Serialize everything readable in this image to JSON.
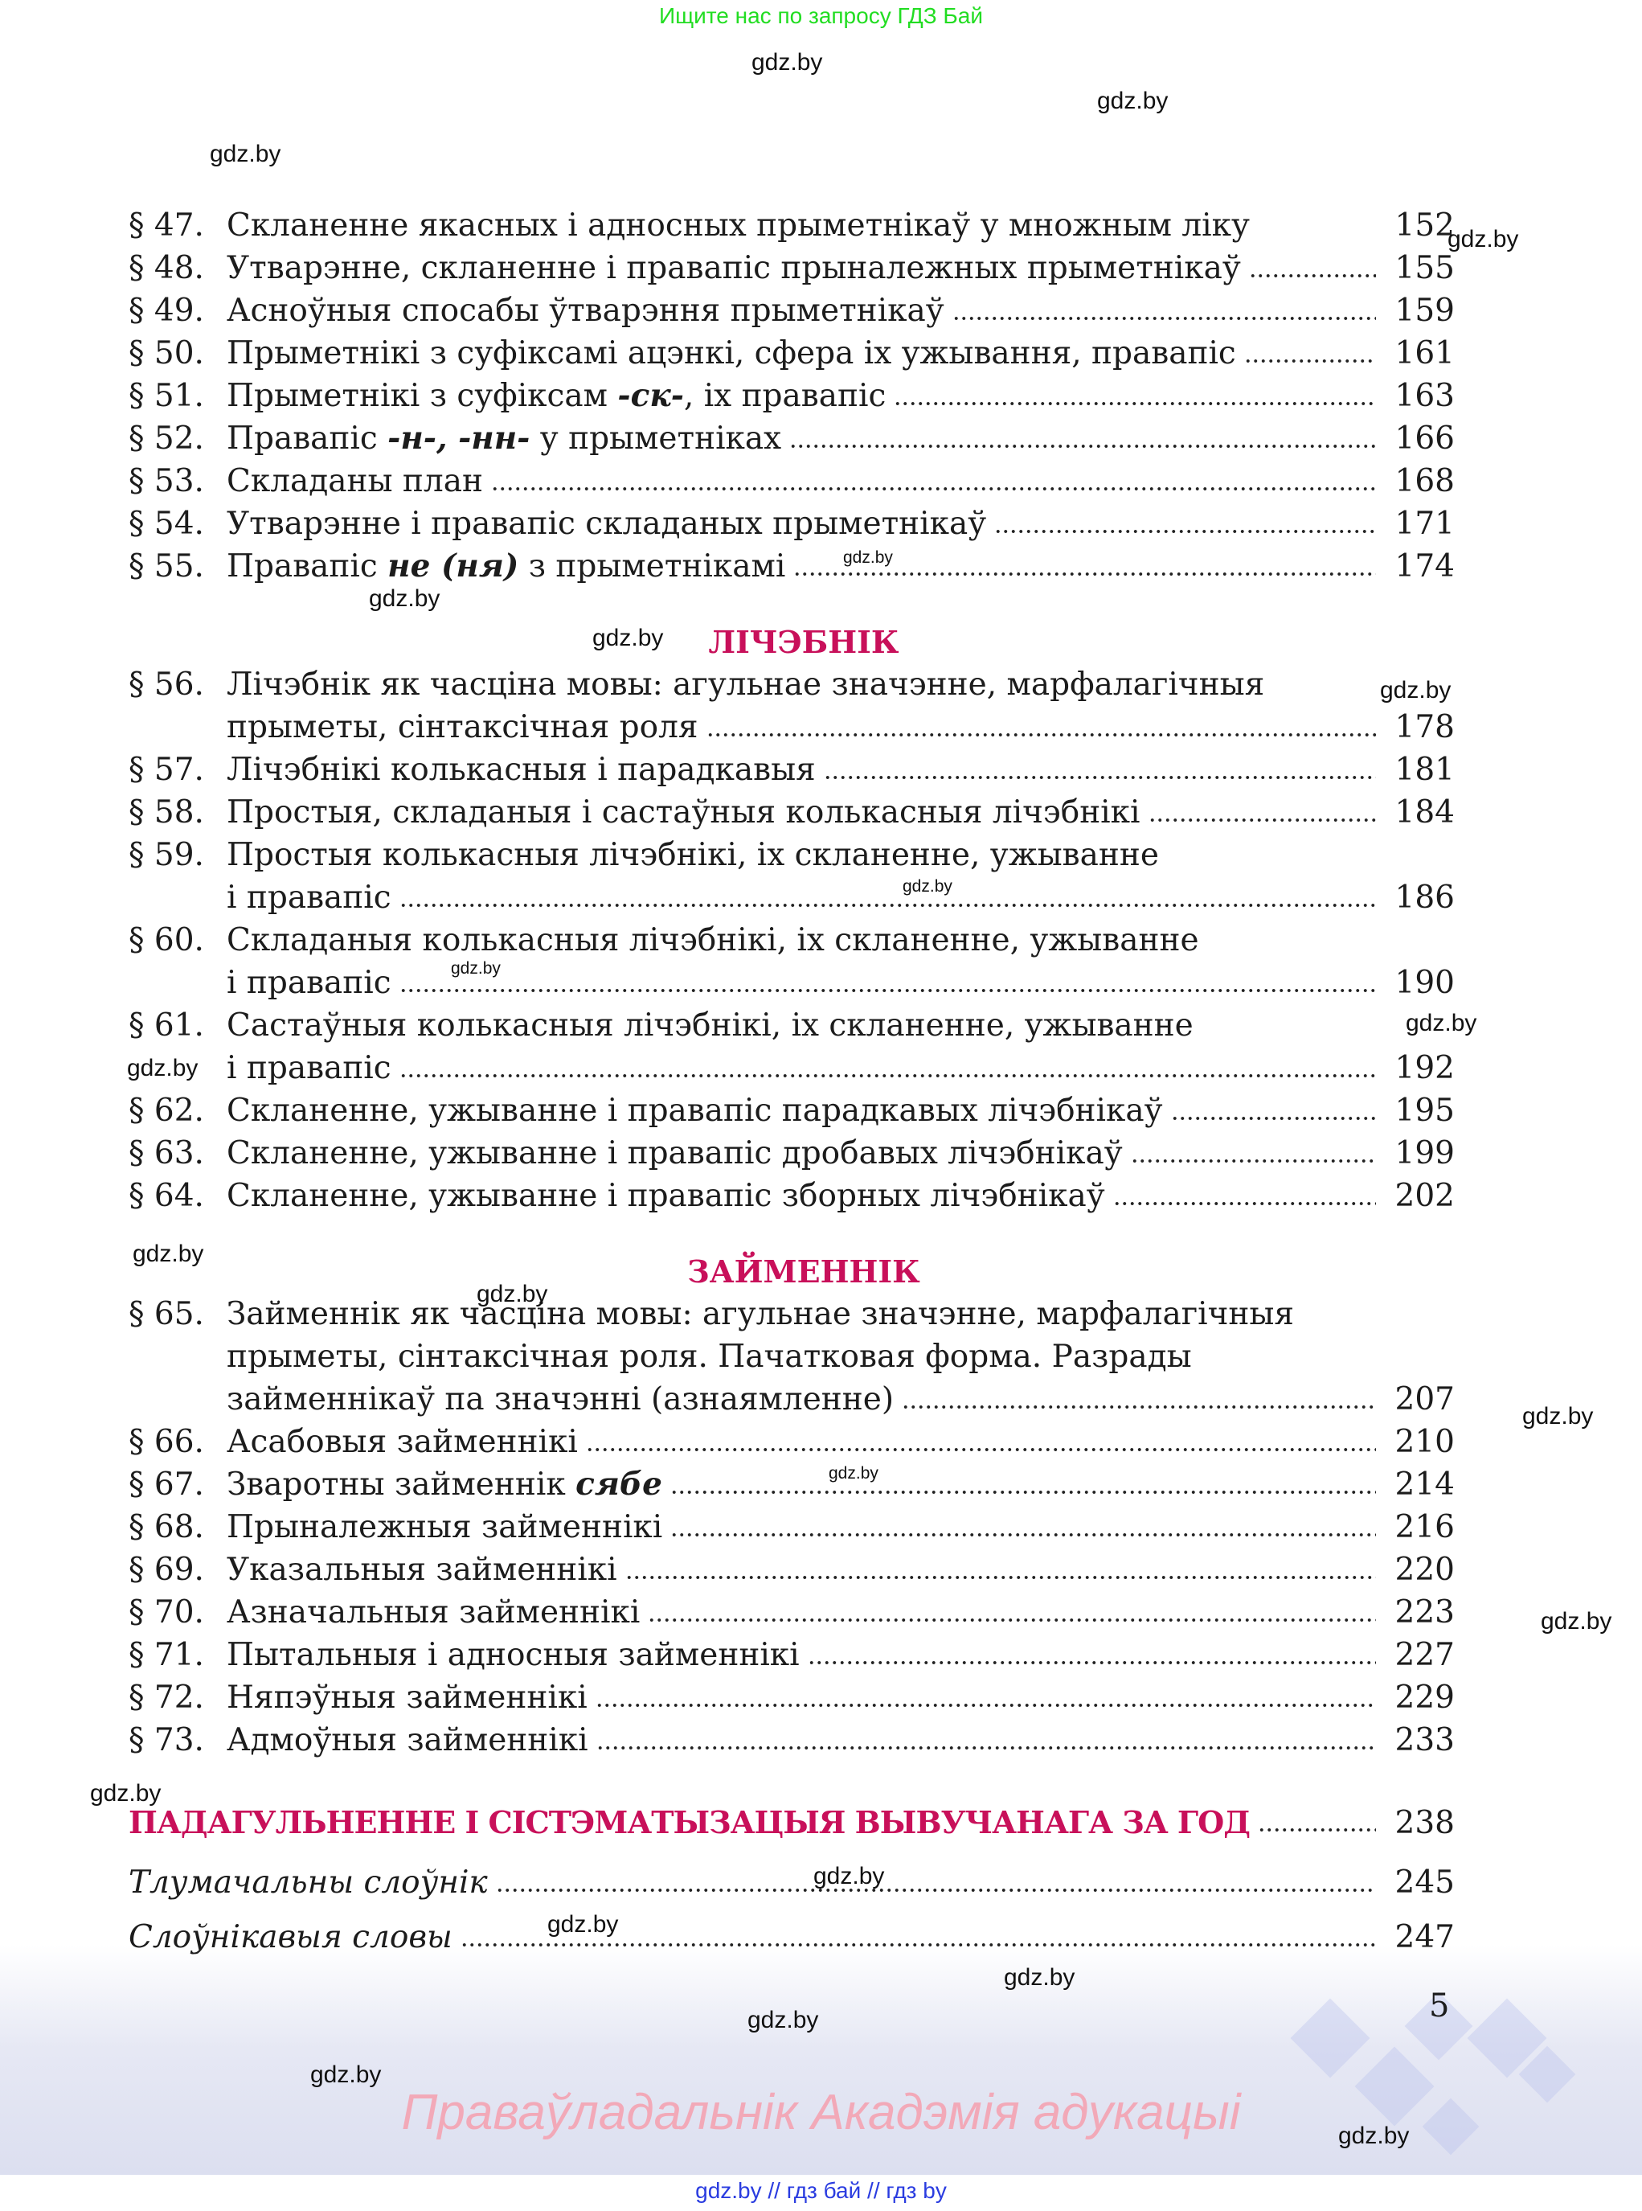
{
  "top_note": "Ищите нас по запросу ГДЗ Бай",
  "watermark": "gdz.by",
  "toc": [
    {
      "kind": "entry",
      "num": "§ 47.",
      "lines": [
        [
          {
            "t": "Скланенне якасных і адносных прыметнікаў у множным ліку"
          }
        ]
      ],
      "page": "152",
      "leader": false
    },
    {
      "kind": "entry",
      "num": "§ 48.",
      "lines": [
        [
          {
            "t": "Утварэнне, скланенне і правапіс прыналежных прыметнікаў"
          }
        ]
      ],
      "page": "155"
    },
    {
      "kind": "entry",
      "num": "§ 49.",
      "lines": [
        [
          {
            "t": "Асноўныя спосабы ўтварэння прыметнікаў"
          }
        ]
      ],
      "page": "159"
    },
    {
      "kind": "entry",
      "num": "§ 50.",
      "lines": [
        [
          {
            "t": "Прыметнікі з суфіксамі ацэнкі, сфера іх ужывання, правапіс"
          }
        ]
      ],
      "page": "161"
    },
    {
      "kind": "entry",
      "num": "§ 51.",
      "lines": [
        [
          {
            "t": "Прыметнікі з суфіксам "
          },
          {
            "t": "-ск-",
            "i": true
          },
          {
            "t": ", іх правапіс"
          }
        ]
      ],
      "page": "163"
    },
    {
      "kind": "entry",
      "num": "§ 52.",
      "lines": [
        [
          {
            "t": "Правапіс "
          },
          {
            "t": "-н-, -нн-",
            "i": true
          },
          {
            "t": " у прыметніках"
          }
        ]
      ],
      "page": "166"
    },
    {
      "kind": "entry",
      "num": "§ 53.",
      "lines": [
        [
          {
            "t": "Складаны план"
          }
        ]
      ],
      "page": "168"
    },
    {
      "kind": "entry",
      "num": "§ 54.",
      "lines": [
        [
          {
            "t": "Утварэнне і правапіс складаных прыметнікаў"
          }
        ]
      ],
      "page": "171"
    },
    {
      "kind": "entry",
      "num": "§ 55.",
      "lines": [
        [
          {
            "t": "Правапіс "
          },
          {
            "t": "не (ня)",
            "i": true
          },
          {
            "t": " з прыметнікамі"
          }
        ]
      ],
      "page": "174"
    },
    {
      "kind": "heading",
      "title": "ЛІЧЭБНІК"
    },
    {
      "kind": "entry",
      "num": "§ 56.",
      "lines": [
        [
          {
            "t": "Лічэбнік як часціна мовы: агульнае значэнне, марфалагічныя"
          }
        ],
        [
          {
            "t": "прыметы, сінтаксічная роля"
          }
        ]
      ],
      "page": "178"
    },
    {
      "kind": "entry",
      "num": "§ 57.",
      "lines": [
        [
          {
            "t": "Лічэбнікі колькасныя і парадкавыя"
          }
        ]
      ],
      "page": "181"
    },
    {
      "kind": "entry",
      "num": "§ 58.",
      "lines": [
        [
          {
            "t": "Простыя, складаныя і састаўныя колькасныя лічэбнікі"
          }
        ]
      ],
      "page": "184"
    },
    {
      "kind": "entry",
      "num": "§ 59.",
      "lines": [
        [
          {
            "t": "Простыя колькасныя лічэбнікі, іх скланенне, ужыванне"
          }
        ],
        [
          {
            "t": "і правапіс"
          }
        ]
      ],
      "page": "186"
    },
    {
      "kind": "entry",
      "num": "§ 60.",
      "lines": [
        [
          {
            "t": "Складаныя колькасныя лічэбнікі, іх скланенне, ужыванне"
          }
        ],
        [
          {
            "t": "і правапіс"
          }
        ]
      ],
      "page": "190"
    },
    {
      "kind": "entry",
      "num": "§ 61.",
      "lines": [
        [
          {
            "t": "Састаўныя колькасныя лічэбнікі, іх скланенне, ужыванне"
          }
        ],
        [
          {
            "t": "і правапіс"
          }
        ]
      ],
      "page": "192"
    },
    {
      "kind": "entry",
      "num": "§ 62.",
      "lines": [
        [
          {
            "t": "Скланенне, ужыванне і правапіс парадкавых лічэбнікаў"
          }
        ]
      ],
      "page": "195"
    },
    {
      "kind": "entry",
      "num": "§ 63.",
      "lines": [
        [
          {
            "t": "Скланенне, ужыванне і правапіс дробавых лічэбнікаў"
          }
        ]
      ],
      "page": "199"
    },
    {
      "kind": "entry",
      "num": "§ 64.",
      "lines": [
        [
          {
            "t": "Скланенне, ужыванне і правапіс зборных лічэбнікаў"
          }
        ]
      ],
      "page": "202"
    },
    {
      "kind": "heading",
      "title": "ЗАЙМЕННІК"
    },
    {
      "kind": "entry",
      "num": "§ 65.",
      "lines": [
        [
          {
            "t": "Займеннік як часціна мовы: агульнае значэнне, марфалагічныя"
          }
        ],
        [
          {
            "t": "прыметы, сінтаксічная роля. Пачатковая форма. Разрады"
          }
        ],
        [
          {
            "t": "займеннікаў па значэнні (азнаямленне)"
          }
        ]
      ],
      "page": "207"
    },
    {
      "kind": "entry",
      "num": "§ 66.",
      "lines": [
        [
          {
            "t": "Асабовыя займеннікі"
          }
        ]
      ],
      "page": "210"
    },
    {
      "kind": "entry",
      "num": "§ 67.",
      "lines": [
        [
          {
            "t": "Зваротны займеннік "
          },
          {
            "t": "сябе",
            "i": true
          }
        ]
      ],
      "page": "214"
    },
    {
      "kind": "entry",
      "num": "§ 68.",
      "lines": [
        [
          {
            "t": "Прыналежныя займеннікі"
          }
        ]
      ],
      "page": "216"
    },
    {
      "kind": "entry",
      "num": "§ 69.",
      "lines": [
        [
          {
            "t": "Указальныя займеннікі"
          }
        ]
      ],
      "page": "220"
    },
    {
      "kind": "entry",
      "num": "§ 70.",
      "lines": [
        [
          {
            "t": "Азначальныя займеннікі"
          }
        ]
      ],
      "page": "223"
    },
    {
      "kind": "entry",
      "num": "§ 71.",
      "lines": [
        [
          {
            "t": "Пытальныя і адносныя займеннікі"
          }
        ]
      ],
      "page": "227"
    },
    {
      "kind": "entry",
      "num": "§ 72.",
      "lines": [
        [
          {
            "t": "Няпэўныя займеннікі"
          }
        ]
      ],
      "page": "229"
    },
    {
      "kind": "entry",
      "num": "§ 73.",
      "lines": [
        [
          {
            "t": "Адмоўныя займеннікі"
          }
        ]
      ],
      "page": "233"
    },
    {
      "kind": "summary",
      "title": "ПАДАГУЛЬНЕННЕ І СІСТЭМАТЫЗАЦЫЯ ВЫВУЧАНАГА ЗА ГОД",
      "page": "238"
    },
    {
      "kind": "dict",
      "title": "Тлумачальны слоўнік",
      "page": "245"
    },
    {
      "kind": "dict",
      "title": "Слоўнікавыя словы",
      "page": "247"
    }
  ],
  "page_number": "5",
  "copyright": "Праваўладальнік Акадэмія адукацыі",
  "footer": "gdz.by  //  гдз бай  //  гдз by",
  "colors": {
    "heading": "#c8105a",
    "top_note": "#22dd22",
    "footer": "#2a3ce0",
    "copyright": "#f2a9b8"
  }
}
